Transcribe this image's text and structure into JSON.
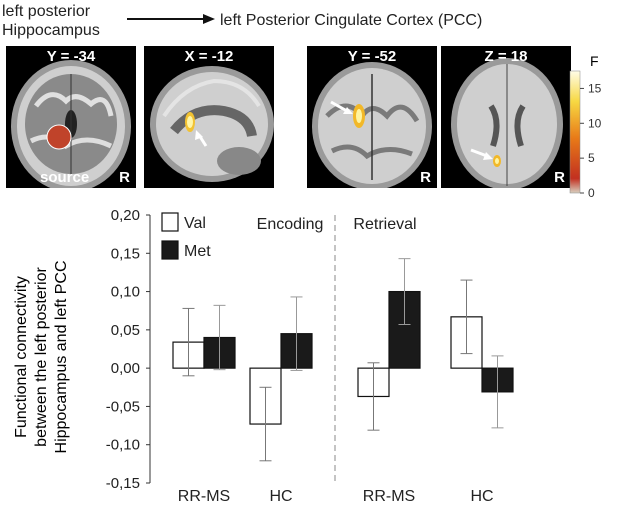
{
  "header": {
    "source_line1": "left posterior",
    "source_line2": "Hippocampus",
    "target": "left Posterior Cingulate Cortex (PCC)"
  },
  "panels": [
    {
      "coord": "Y = -34",
      "side": "R",
      "extra": "source",
      "view": "coronal"
    },
    {
      "coord": "X = -12",
      "side": "",
      "extra": "",
      "view": "sagittal"
    },
    {
      "coord": "Y = -52",
      "side": "R",
      "extra": "",
      "view": "coronal"
    },
    {
      "coord": "Z = 18",
      "side": "R",
      "extra": "",
      "view": "axial"
    }
  ],
  "colorbar": {
    "label": "F",
    "ticks": [
      "15",
      "10",
      "5",
      "0"
    ],
    "tick_values": [
      15,
      10,
      5,
      0
    ],
    "min": 0,
    "max": 17.5
  },
  "chart_data": {
    "type": "bar",
    "ylabel_lines": [
      "Functional connectivity",
      "between the left posterior",
      "Hippocampus and left PCC"
    ],
    "ylim": [
      -0.15,
      0.2
    ],
    "yticks": [
      -0.15,
      -0.1,
      -0.05,
      0,
      0.05,
      0.1,
      0.15,
      0.2
    ],
    "ytick_labels": [
      "-0,15",
      "-0,10",
      "-0,05",
      "0,00",
      "0,05",
      "0,10",
      "0,15",
      "0,20"
    ],
    "groups": [
      {
        "label": "RR-MS",
        "phase": "Encoding"
      },
      {
        "label": "HC",
        "phase": "Encoding"
      },
      {
        "label": "RR-MS",
        "phase": "Retrieval"
      },
      {
        "label": "HC",
        "phase": "Retrieval"
      }
    ],
    "phases": [
      "Encoding",
      "Retrieval"
    ],
    "series": [
      {
        "name": "Val",
        "color": "#ffffff",
        "values": [
          0.034,
          -0.073,
          -0.037,
          0.067
        ],
        "error": [
          0.044,
          0.048,
          0.044,
          0.048
        ]
      },
      {
        "name": "Met",
        "color": "#1a1a1a",
        "values": [
          0.04,
          0.045,
          0.1,
          -0.031
        ],
        "error": [
          0.042,
          0.048,
          0.043,
          0.047
        ]
      }
    ],
    "legend_position": "top-left",
    "grid": false
  }
}
